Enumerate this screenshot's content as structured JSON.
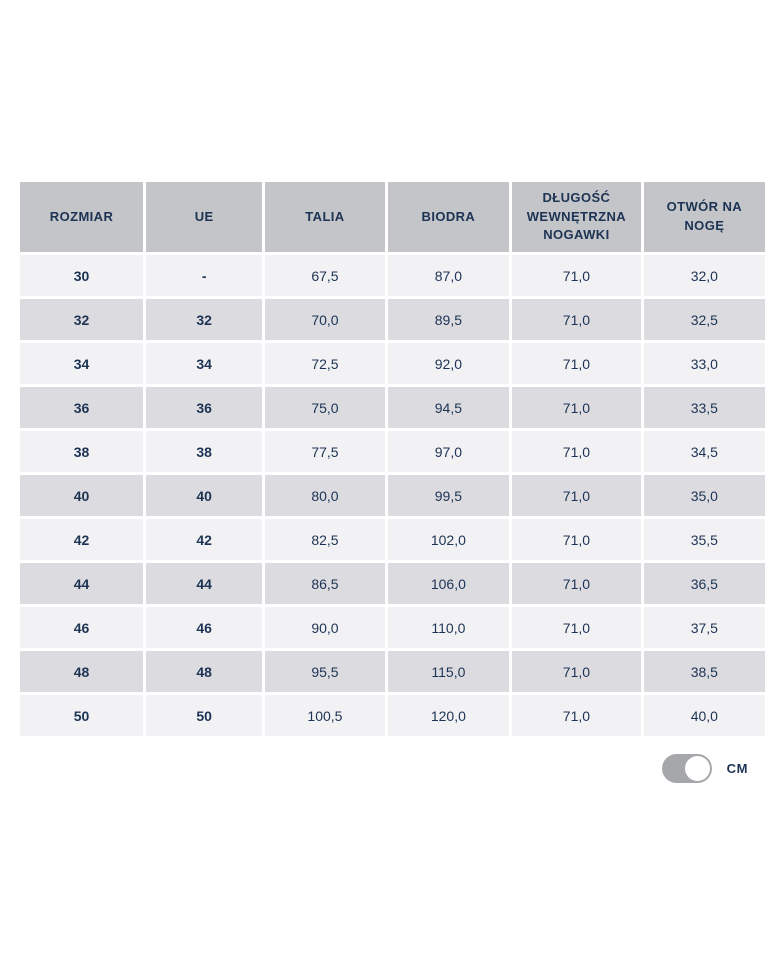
{
  "size_table": {
    "columns": [
      "ROZMIAR",
      "UE",
      "TALIA",
      "BIODRA",
      "DŁUGOŚĆ WEWNĘTRZNA NOGAWKI",
      "OTWÓR NA NOGĘ"
    ],
    "rows": [
      [
        "30",
        "-",
        "67,5",
        "87,0",
        "71,0",
        "32,0"
      ],
      [
        "32",
        "32",
        "70,0",
        "89,5",
        "71,0",
        "32,5"
      ],
      [
        "34",
        "34",
        "72,5",
        "92,0",
        "71,0",
        "33,0"
      ],
      [
        "36",
        "36",
        "75,0",
        "94,5",
        "71,0",
        "33,5"
      ],
      [
        "38",
        "38",
        "77,5",
        "97,0",
        "71,0",
        "34,5"
      ],
      [
        "40",
        "40",
        "80,0",
        "99,5",
        "71,0",
        "35,0"
      ],
      [
        "42",
        "42",
        "82,5",
        "102,0",
        "71,0",
        "35,5"
      ],
      [
        "44",
        "44",
        "86,5",
        "106,0",
        "71,0",
        "36,5"
      ],
      [
        "46",
        "46",
        "90,0",
        "110,0",
        "71,0",
        "37,5"
      ],
      [
        "48",
        "48",
        "95,5",
        "115,0",
        "71,0",
        "38,5"
      ],
      [
        "50",
        "50",
        "100,5",
        "120,0",
        "71,0",
        "40,0"
      ]
    ],
    "bold_columns": [
      0,
      1
    ]
  },
  "unit_toggle": {
    "label": "CM",
    "state": "on"
  },
  "colors": {
    "header_bg": "#c4c5c8",
    "row_light": "#f2f2f4",
    "row_dark": "#dcdce0",
    "text": "#1d3354",
    "toggle_track": "#a6a7aa",
    "toggle_knob": "#ffffff",
    "page_bg": "#ffffff"
  }
}
